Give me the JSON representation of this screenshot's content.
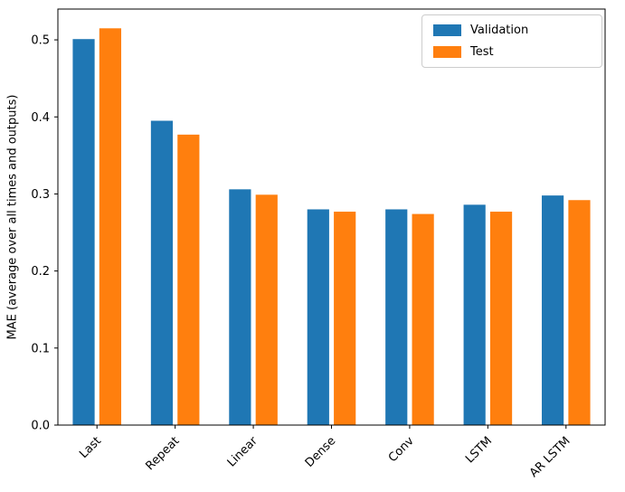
{
  "chart_data": {
    "type": "bar",
    "title": "",
    "xlabel": "",
    "ylabel": "MAE (average over all times and outputs)",
    "categories": [
      "Last",
      "Repeat",
      "Linear",
      "Dense",
      "Conv",
      "LSTM",
      "AR LSTM"
    ],
    "series": [
      {
        "name": "Validation",
        "color": "#1f77b4",
        "values": [
          0.501,
          0.395,
          0.306,
          0.28,
          0.28,
          0.286,
          0.298
        ]
      },
      {
        "name": "Test",
        "color": "#ff7f0e",
        "values": [
          0.515,
          0.377,
          0.299,
          0.277,
          0.274,
          0.277,
          0.292
        ]
      }
    ],
    "ylim": [
      0,
      0.54
    ],
    "yticks": [
      "0.0",
      "0.1",
      "0.2",
      "0.3",
      "0.4",
      "0.5"
    ],
    "x_tick_rotation": 45,
    "legend_position": "upper right",
    "grid": false,
    "bar_width_fraction": 0.28,
    "bar_offset_fraction": 0.17,
    "axis_color": "#000000",
    "background_color": "#ffffff"
  }
}
